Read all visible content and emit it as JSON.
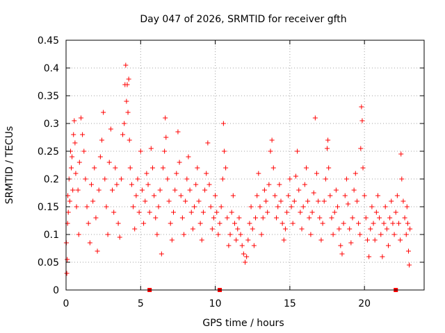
{
  "chart_data": {
    "type": "scatter",
    "title": "Day 047 of 2026, SRMTID for receiver gfth",
    "xlabel": "GPS time / hours",
    "ylabel": "SRMTID / TECUs",
    "xlim": [
      0,
      24
    ],
    "ylim": [
      0,
      0.45
    ],
    "grid": true,
    "marker": "+",
    "x_ticks": [
      {
        "value": 0,
        "label": "0"
      },
      {
        "value": 5,
        "label": "5"
      },
      {
        "value": 10,
        "label": "10"
      },
      {
        "value": 15,
        "label": "15"
      },
      {
        "value": 20,
        "label": "20"
      }
    ],
    "y_ticks": [
      {
        "value": 0,
        "label": "0"
      },
      {
        "value": 0.05,
        "label": "0.05"
      },
      {
        "value": 0.1,
        "label": "0.1"
      },
      {
        "value": 0.15,
        "label": "0.15"
      },
      {
        "value": 0.2,
        "label": "0.2"
      },
      {
        "value": 0.25,
        "label": "0.25"
      },
      {
        "value": 0.3,
        "label": "0.3"
      },
      {
        "value": 0.35,
        "label": "0.35"
      },
      {
        "value": 0.4,
        "label": "0.4"
      },
      {
        "value": 0.45,
        "label": "0.45"
      }
    ],
    "series": [
      {
        "name": "SRMTID",
        "color": "#ff0000",
        "points": [
          [
            0.02,
            0.085
          ],
          [
            0.05,
            0.03
          ],
          [
            0.08,
            0.055
          ],
          [
            0.1,
            0.12
          ],
          [
            0.12,
            0.17
          ],
          [
            0.15,
            0.14
          ],
          [
            0.2,
            0.2
          ],
          [
            0.25,
            0.16
          ],
          [
            0.3,
            0.25
          ],
          [
            0.35,
            0.22
          ],
          [
            0.4,
            0.24
          ],
          [
            0.45,
            0.18
          ],
          [
            0.5,
            0.28
          ],
          [
            0.55,
            0.305
          ],
          [
            0.6,
            0.265
          ],
          [
            0.65,
            0.21
          ],
          [
            0.7,
            0.15
          ],
          [
            0.8,
            0.18
          ],
          [
            0.85,
            0.1
          ],
          [
            0.9,
            0.23
          ],
          [
            1.0,
            0.31
          ],
          [
            1.1,
            0.28
          ],
          [
            1.2,
            0.25
          ],
          [
            1.3,
            0.2
          ],
          [
            1.4,
            0.15
          ],
          [
            1.5,
            0.12
          ],
          [
            1.6,
            0.085
          ],
          [
            1.7,
            0.19
          ],
          [
            1.8,
            0.16
          ],
          [
            1.9,
            0.22
          ],
          [
            2.0,
            0.13
          ],
          [
            2.1,
            0.07
          ],
          [
            2.2,
            0.18
          ],
          [
            2.3,
            0.24
          ],
          [
            2.4,
            0.27
          ],
          [
            2.5,
            0.32
          ],
          [
            2.6,
            0.2
          ],
          [
            2.7,
            0.15
          ],
          [
            2.8,
            0.1
          ],
          [
            2.9,
            0.23
          ],
          [
            3.0,
            0.29
          ],
          [
            3.1,
            0.18
          ],
          [
            3.2,
            0.14
          ],
          [
            3.3,
            0.22
          ],
          [
            3.4,
            0.19
          ],
          [
            3.5,
            0.12
          ],
          [
            3.6,
            0.095
          ],
          [
            3.7,
            0.2
          ],
          [
            3.8,
            0.28
          ],
          [
            3.9,
            0.3
          ],
          [
            3.95,
            0.37
          ],
          [
            4.0,
            0.405
          ],
          [
            4.05,
            0.34
          ],
          [
            4.1,
            0.37
          ],
          [
            4.15,
            0.32
          ],
          [
            4.2,
            0.38
          ],
          [
            4.25,
            0.27
          ],
          [
            4.3,
            0.22
          ],
          [
            4.4,
            0.19
          ],
          [
            4.5,
            0.15
          ],
          [
            4.6,
            0.11
          ],
          [
            4.7,
            0.17
          ],
          [
            4.8,
            0.2
          ],
          [
            4.9,
            0.14
          ],
          [
            5.0,
            0.25
          ],
          [
            5.1,
            0.18
          ],
          [
            5.2,
            0.12
          ],
          [
            5.3,
            0.16
          ],
          [
            5.4,
            0.21
          ],
          [
            5.5,
            0.19
          ],
          [
            5.6,
            0.14
          ],
          [
            5.7,
            0.255
          ],
          [
            5.8,
            0.22
          ],
          [
            5.9,
            0.17
          ],
          [
            6.0,
            0.13
          ],
          [
            6.1,
            0.1
          ],
          [
            6.2,
            0.15
          ],
          [
            6.3,
            0.18
          ],
          [
            6.4,
            0.065
          ],
          [
            6.5,
            0.22
          ],
          [
            6.6,
            0.25
          ],
          [
            6.65,
            0.31
          ],
          [
            6.7,
            0.275
          ],
          [
            6.8,
            0.2
          ],
          [
            6.9,
            0.16
          ],
          [
            7.0,
            0.12
          ],
          [
            7.1,
            0.09
          ],
          [
            7.2,
            0.14
          ],
          [
            7.3,
            0.18
          ],
          [
            7.4,
            0.21
          ],
          [
            7.5,
            0.285
          ],
          [
            7.6,
            0.23
          ],
          [
            7.7,
            0.17
          ],
          [
            7.8,
            0.13
          ],
          [
            7.9,
            0.1
          ],
          [
            8.0,
            0.16
          ],
          [
            8.1,
            0.2
          ],
          [
            8.2,
            0.24
          ],
          [
            8.3,
            0.18
          ],
          [
            8.4,
            0.14
          ],
          [
            8.5,
            0.11
          ],
          [
            8.6,
            0.15
          ],
          [
            8.7,
            0.19
          ],
          [
            8.8,
            0.22
          ],
          [
            8.9,
            0.16
          ],
          [
            9.0,
            0.12
          ],
          [
            9.1,
            0.09
          ],
          [
            9.2,
            0.14
          ],
          [
            9.3,
            0.18
          ],
          [
            9.4,
            0.21
          ],
          [
            9.5,
            0.265
          ],
          [
            9.6,
            0.19
          ],
          [
            9.7,
            0.15
          ],
          [
            9.8,
            0.11
          ],
          [
            9.9,
            0.13
          ],
          [
            10.0,
            0.17
          ],
          [
            10.1,
            0.14
          ],
          [
            10.2,
            0.1
          ],
          [
            10.3,
            0.12
          ],
          [
            10.4,
            0.15
          ],
          [
            10.5,
            0.2
          ],
          [
            10.55,
            0.3
          ],
          [
            10.6,
            0.25
          ],
          [
            10.7,
            0.22
          ],
          [
            10.8,
            0.13
          ],
          [
            10.9,
            0.08
          ],
          [
            11.0,
            0.1
          ],
          [
            11.1,
            0.14
          ],
          [
            11.2,
            0.17
          ],
          [
            11.3,
            0.12
          ],
          [
            11.4,
            0.09
          ],
          [
            11.5,
            0.11
          ],
          [
            11.6,
            0.13
          ],
          [
            11.7,
            0.1
          ],
          [
            11.8,
            0.08
          ],
          [
            11.9,
            0.065
          ],
          [
            12.0,
            0.05
          ],
          [
            12.1,
            0.06
          ],
          [
            12.2,
            0.09
          ],
          [
            12.3,
            0.12
          ],
          [
            12.4,
            0.15
          ],
          [
            12.5,
            0.11
          ],
          [
            12.6,
            0.08
          ],
          [
            12.7,
            0.13
          ],
          [
            12.8,
            0.17
          ],
          [
            12.9,
            0.21
          ],
          [
            13.0,
            0.15
          ],
          [
            13.1,
            0.1
          ],
          [
            13.2,
            0.13
          ],
          [
            13.3,
            0.18
          ],
          [
            13.4,
            0.16
          ],
          [
            13.5,
            0.14
          ],
          [
            13.6,
            0.19
          ],
          [
            13.7,
            0.25
          ],
          [
            13.8,
            0.27
          ],
          [
            13.9,
            0.22
          ],
          [
            14.0,
            0.17
          ],
          [
            14.1,
            0.13
          ],
          [
            14.2,
            0.15
          ],
          [
            14.3,
            0.19
          ],
          [
            14.4,
            0.16
          ],
          [
            14.5,
            0.12
          ],
          [
            14.6,
            0.09
          ],
          [
            14.7,
            0.11
          ],
          [
            14.8,
            0.14
          ],
          [
            14.9,
            0.17
          ],
          [
            15.0,
            0.2
          ],
          [
            15.1,
            0.15
          ],
          [
            15.2,
            0.12
          ],
          [
            15.3,
            0.16
          ],
          [
            15.4,
            0.205
          ],
          [
            15.5,
            0.25
          ],
          [
            15.6,
            0.18
          ],
          [
            15.7,
            0.14
          ],
          [
            15.8,
            0.11
          ],
          [
            15.9,
            0.15
          ],
          [
            16.0,
            0.19
          ],
          [
            16.1,
            0.22
          ],
          [
            16.2,
            0.16
          ],
          [
            16.3,
            0.13
          ],
          [
            16.4,
            0.1
          ],
          [
            16.5,
            0.14
          ],
          [
            16.6,
            0.175
          ],
          [
            16.7,
            0.31
          ],
          [
            16.8,
            0.21
          ],
          [
            16.9,
            0.16
          ],
          [
            17.0,
            0.13
          ],
          [
            17.1,
            0.09
          ],
          [
            17.2,
            0.12
          ],
          [
            17.3,
            0.16
          ],
          [
            17.4,
            0.2
          ],
          [
            17.5,
            0.255
          ],
          [
            17.55,
            0.27
          ],
          [
            17.6,
            0.22
          ],
          [
            17.7,
            0.17
          ],
          [
            17.8,
            0.13
          ],
          [
            17.9,
            0.1
          ],
          [
            18.0,
            0.14
          ],
          [
            18.1,
            0.18
          ],
          [
            18.2,
            0.15
          ],
          [
            18.3,
            0.11
          ],
          [
            18.4,
            0.08
          ],
          [
            18.5,
            0.065
          ],
          [
            18.6,
            0.12
          ],
          [
            18.7,
            0.17
          ],
          [
            18.8,
            0.2
          ],
          [
            18.9,
            0.155
          ],
          [
            19.0,
            0.11
          ],
          [
            19.1,
            0.085
          ],
          [
            19.2,
            0.13
          ],
          [
            19.3,
            0.18
          ],
          [
            19.4,
            0.21
          ],
          [
            19.5,
            0.16
          ],
          [
            19.6,
            0.12
          ],
          [
            19.7,
            0.1
          ],
          [
            19.75,
            0.255
          ],
          [
            19.8,
            0.33
          ],
          [
            19.85,
            0.305
          ],
          [
            19.9,
            0.22
          ],
          [
            20.0,
            0.17
          ],
          [
            20.1,
            0.13
          ],
          [
            20.2,
            0.09
          ],
          [
            20.3,
            0.06
          ],
          [
            20.4,
            0.11
          ],
          [
            20.5,
            0.15
          ],
          [
            20.6,
            0.12
          ],
          [
            20.7,
            0.09
          ],
          [
            20.8,
            0.14
          ],
          [
            20.9,
            0.17
          ],
          [
            21.0,
            0.13
          ],
          [
            21.1,
            0.1
          ],
          [
            21.2,
            0.06
          ],
          [
            21.3,
            0.12
          ],
          [
            21.4,
            0.15
          ],
          [
            21.5,
            0.11
          ],
          [
            21.6,
            0.08
          ],
          [
            21.7,
            0.13
          ],
          [
            21.8,
            0.16
          ],
          [
            21.9,
            0.12
          ],
          [
            22.0,
            0.1
          ],
          [
            22.1,
            0.14
          ],
          [
            22.2,
            0.17
          ],
          [
            22.3,
            0.12
          ],
          [
            22.4,
            0.09
          ],
          [
            22.45,
            0.245
          ],
          [
            22.5,
            0.2
          ],
          [
            22.6,
            0.16
          ],
          [
            22.7,
            0.13
          ],
          [
            22.8,
            0.1
          ],
          [
            22.85,
            0.15
          ],
          [
            22.9,
            0.12
          ],
          [
            22.95,
            0.07
          ],
          [
            23.0,
            0.045
          ],
          [
            23.05,
            0.11
          ]
        ]
      }
    ],
    "baseline_markers": [
      {
        "x": 5.6,
        "y": 0
      },
      {
        "x": 10.3,
        "y": 0
      },
      {
        "x": 22.1,
        "y": 0
      }
    ]
  }
}
